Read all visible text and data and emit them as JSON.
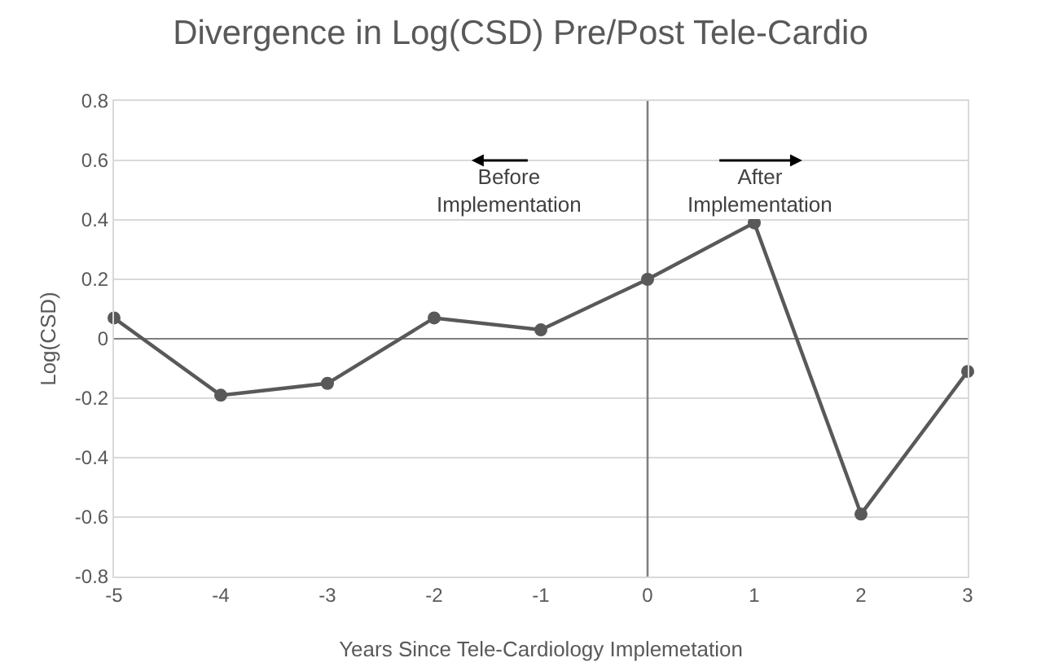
{
  "chart_data": {
    "type": "line",
    "title": "Divergence in Log(CSD) Pre/Post Tele-Cardio",
    "xlabel": "Years Since Tele-Cardiology Implemetation",
    "ylabel": "Log(CSD)",
    "x": [
      -5,
      -4,
      -3,
      -2,
      -1,
      0,
      1,
      2,
      3
    ],
    "series": [
      {
        "color": "#595959",
        "values": [
          0.07,
          -0.19,
          -0.15,
          0.07,
          0.03,
          0.2,
          0.39,
          -0.59,
          -0.11
        ]
      }
    ],
    "xlim": [
      -5,
      3
    ],
    "xticks": [
      -5,
      -4,
      -3,
      -2,
      -1,
      0,
      1,
      2,
      3
    ],
    "ylim": [
      -0.8,
      0.8
    ],
    "yticks": [
      -0.8,
      -0.6,
      -0.4,
      -0.2,
      0,
      0.2,
      0.4,
      0.6,
      0.8
    ],
    "grid": "y",
    "marker": "circle",
    "line_style": "solid",
    "ref_lines": [
      {
        "axis": "x",
        "value": 0,
        "color": "#7f7f7f"
      }
    ],
    "annotations": [
      "Before\nImplementation",
      "After\nImplementation"
    ]
  }
}
